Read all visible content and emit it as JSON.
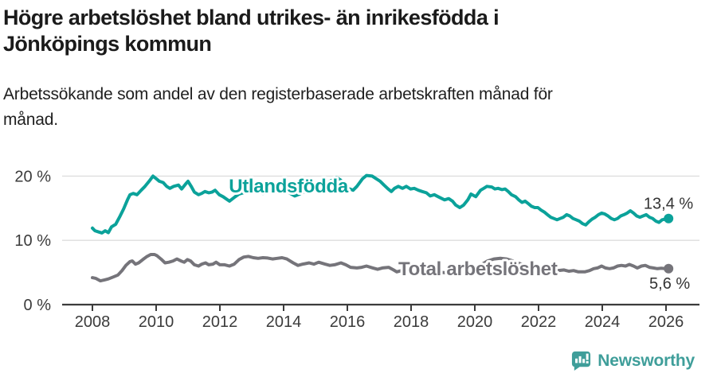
{
  "title": {
    "full": "Högre arbetslöshet bland utrikes- än inrikesfödda i Jönköpings kommun",
    "line1": "Högre arbetslöshet bland utrikes- än inrikesfödda i",
    "line2": "Jönköpings kommun"
  },
  "subtitle": {
    "full": "Arbetssökande som andel av den registerbaserade arbetskraften månad för månad.",
    "line1": "Arbetssökande som andel av den registerbaserade arbetskraften månad för",
    "line2": "månad."
  },
  "branding": {
    "logo_text": "Newsworthy",
    "logo_icon": "bar-chart-speech-bubble-icon",
    "logo_color": "#3f9e9a"
  },
  "colors": {
    "foreign_born_line": "#0ba29a",
    "total_line": "#75747a",
    "grid": "#dedede",
    "axis": "#3b3b3b",
    "tick_label": "#3b3b3b",
    "value_label": "#333333",
    "halo": "#ffffff"
  },
  "chart_data": {
    "type": "line",
    "title": "Högre arbetslöshet bland utrikes- än inrikesfödda i Jönköpings kommun",
    "subtitle": "Arbetssökande som andel av den registerbaserade arbetskraften månad för månad.",
    "unit": "%",
    "grid": "horizontal",
    "x_axis": {
      "ticks": [
        2008,
        2010,
        2012,
        2014,
        2016,
        2018,
        2020,
        2022,
        2024,
        2026
      ],
      "range": [
        2007.05,
        2027.05
      ]
    },
    "y_axis": {
      "ticks": [
        {
          "value": 0,
          "label": "0 %"
        },
        {
          "value": 10,
          "label": "10 %"
        },
        {
          "value": 20,
          "label": "20 %"
        }
      ],
      "range": [
        0,
        24
      ]
    },
    "series": [
      {
        "name": "Utlandsfödda",
        "slug": "utlandsfodda",
        "color": "#0ba29a",
        "end_value": 13.4,
        "end_label": "13,4 %",
        "end_label_offset": {
          "dx": 31,
          "dy": -12
        },
        "inline_label": {
          "text": "Utlandsfödda",
          "x": 2012.28,
          "y": 17.45
        },
        "points": [
          [
            2008.0,
            11.9
          ],
          [
            2008.08,
            11.5
          ],
          [
            2008.2,
            11.3
          ],
          [
            2008.3,
            11.15
          ],
          [
            2008.4,
            11.5
          ],
          [
            2008.5,
            11.2
          ],
          [
            2008.6,
            12.1
          ],
          [
            2008.73,
            12.5
          ],
          [
            2008.85,
            13.6
          ],
          [
            2008.98,
            14.9
          ],
          [
            2009.1,
            16.3
          ],
          [
            2009.18,
            17.1
          ],
          [
            2009.28,
            17.3
          ],
          [
            2009.4,
            17.1
          ],
          [
            2009.53,
            17.8
          ],
          [
            2009.65,
            18.4
          ],
          [
            2009.78,
            19.2
          ],
          [
            2009.9,
            20.0
          ],
          [
            2010.0,
            19.6
          ],
          [
            2010.1,
            19.2
          ],
          [
            2010.22,
            19.0
          ],
          [
            2010.33,
            18.4
          ],
          [
            2010.43,
            18.1
          ],
          [
            2010.55,
            18.4
          ],
          [
            2010.7,
            18.6
          ],
          [
            2010.8,
            18.0
          ],
          [
            2010.93,
            18.8
          ],
          [
            2011.0,
            19.2
          ],
          [
            2011.1,
            18.4
          ],
          [
            2011.2,
            17.5
          ],
          [
            2011.33,
            17.1
          ],
          [
            2011.43,
            17.3
          ],
          [
            2011.53,
            17.6
          ],
          [
            2011.65,
            17.4
          ],
          [
            2011.75,
            17.5
          ],
          [
            2011.85,
            17.8
          ],
          [
            2011.98,
            17.1
          ],
          [
            2012.1,
            16.8
          ],
          [
            2012.3,
            16.1
          ],
          [
            2012.48,
            16.8
          ],
          [
            2012.6,
            17.2
          ],
          [
            2012.8,
            17.5
          ],
          [
            2013.0,
            17.8
          ],
          [
            2013.2,
            17.6
          ],
          [
            2013.35,
            17.3
          ],
          [
            2013.5,
            17.6
          ],
          [
            2013.7,
            17.9
          ],
          [
            2013.9,
            18.1
          ],
          [
            2014.1,
            17.6
          ],
          [
            2014.35,
            16.9
          ],
          [
            2014.5,
            17.2
          ],
          [
            2014.7,
            17.7
          ],
          [
            2014.9,
            18.2
          ],
          [
            2015.1,
            18.5
          ],
          [
            2015.3,
            18.8
          ],
          [
            2015.5,
            19.3
          ],
          [
            2015.65,
            19.8
          ],
          [
            2015.78,
            19.4
          ],
          [
            2015.9,
            18.8
          ],
          [
            2016.03,
            18.1
          ],
          [
            2016.18,
            17.8
          ],
          [
            2016.3,
            18.4
          ],
          [
            2016.48,
            19.6
          ],
          [
            2016.6,
            20.1
          ],
          [
            2016.78,
            20.0
          ],
          [
            2016.9,
            19.6
          ],
          [
            2017.03,
            19.2
          ],
          [
            2017.15,
            18.6
          ],
          [
            2017.28,
            18.0
          ],
          [
            2017.38,
            17.6
          ],
          [
            2017.48,
            18.1
          ],
          [
            2017.6,
            18.4
          ],
          [
            2017.73,
            18.1
          ],
          [
            2017.85,
            18.4
          ],
          [
            2017.98,
            18.0
          ],
          [
            2018.1,
            18.1
          ],
          [
            2018.23,
            17.8
          ],
          [
            2018.35,
            17.6
          ],
          [
            2018.48,
            17.4
          ],
          [
            2018.6,
            16.9
          ],
          [
            2018.73,
            17.1
          ],
          [
            2018.85,
            16.8
          ],
          [
            2019.05,
            16.3
          ],
          [
            2019.18,
            16.5
          ],
          [
            2019.3,
            16.1
          ],
          [
            2019.4,
            15.5
          ],
          [
            2019.53,
            15.1
          ],
          [
            2019.65,
            15.5
          ],
          [
            2019.78,
            16.3
          ],
          [
            2019.88,
            17.2
          ],
          [
            2020.03,
            16.8
          ],
          [
            2020.18,
            17.8
          ],
          [
            2020.28,
            18.1
          ],
          [
            2020.38,
            18.4
          ],
          [
            2020.53,
            18.3
          ],
          [
            2020.63,
            18.0
          ],
          [
            2020.73,
            18.1
          ],
          [
            2020.85,
            17.9
          ],
          [
            2020.95,
            18.0
          ],
          [
            2021.05,
            17.6
          ],
          [
            2021.15,
            17.1
          ],
          [
            2021.28,
            16.8
          ],
          [
            2021.38,
            16.3
          ],
          [
            2021.48,
            15.9
          ],
          [
            2021.58,
            16.1
          ],
          [
            2021.68,
            15.7
          ],
          [
            2021.78,
            15.3
          ],
          [
            2021.88,
            15.1
          ],
          [
            2021.98,
            15.1
          ],
          [
            2022.08,
            14.7
          ],
          [
            2022.18,
            14.4
          ],
          [
            2022.28,
            14.0
          ],
          [
            2022.38,
            13.6
          ],
          [
            2022.48,
            13.4
          ],
          [
            2022.58,
            13.2
          ],
          [
            2022.68,
            13.4
          ],
          [
            2022.78,
            13.6
          ],
          [
            2022.88,
            14.0
          ],
          [
            2022.98,
            13.8
          ],
          [
            2023.08,
            13.4
          ],
          [
            2023.18,
            13.2
          ],
          [
            2023.28,
            13.0
          ],
          [
            2023.38,
            12.6
          ],
          [
            2023.48,
            12.4
          ],
          [
            2023.58,
            12.9
          ],
          [
            2023.68,
            13.3
          ],
          [
            2023.78,
            13.6
          ],
          [
            2023.88,
            14.0
          ],
          [
            2023.98,
            14.25
          ],
          [
            2024.08,
            14.1
          ],
          [
            2024.18,
            13.8
          ],
          [
            2024.28,
            13.4
          ],
          [
            2024.38,
            13.2
          ],
          [
            2024.48,
            13.4
          ],
          [
            2024.58,
            13.8
          ],
          [
            2024.68,
            14.0
          ],
          [
            2024.78,
            14.25
          ],
          [
            2024.88,
            14.6
          ],
          [
            2024.98,
            14.25
          ],
          [
            2025.08,
            13.8
          ],
          [
            2025.18,
            13.6
          ],
          [
            2025.28,
            13.8
          ],
          [
            2025.38,
            14.0
          ],
          [
            2025.48,
            13.6
          ],
          [
            2025.58,
            13.4
          ],
          [
            2025.68,
            13.0
          ],
          [
            2025.78,
            12.8
          ],
          [
            2025.88,
            13.2
          ],
          [
            2025.98,
            13.3
          ],
          [
            2026.08,
            13.4
          ]
        ]
      },
      {
        "name": "Total arbetslöshet",
        "slug": "total-arbetsloshet",
        "color": "#75747a",
        "end_value": 5.6,
        "end_label": "5,6 %",
        "end_label_offset": {
          "dx": 27,
          "dy": 25
        },
        "inline_label": {
          "text": "Total arbetslöshet",
          "x": 2017.6,
          "y": 4.55
        },
        "points": [
          [
            2008.0,
            4.2
          ],
          [
            2008.1,
            4.1
          ],
          [
            2008.25,
            3.7
          ],
          [
            2008.38,
            3.85
          ],
          [
            2008.5,
            4.0
          ],
          [
            2008.65,
            4.3
          ],
          [
            2008.8,
            4.6
          ],
          [
            2008.93,
            5.3
          ],
          [
            2009.05,
            6.1
          ],
          [
            2009.18,
            6.7
          ],
          [
            2009.25,
            6.8
          ],
          [
            2009.35,
            6.3
          ],
          [
            2009.45,
            6.5
          ],
          [
            2009.58,
            7.0
          ],
          [
            2009.7,
            7.45
          ],
          [
            2009.83,
            7.8
          ],
          [
            2009.95,
            7.8
          ],
          [
            2010.03,
            7.6
          ],
          [
            2010.15,
            7.1
          ],
          [
            2010.28,
            6.5
          ],
          [
            2010.4,
            6.6
          ],
          [
            2010.53,
            6.8
          ],
          [
            2010.65,
            7.1
          ],
          [
            2010.78,
            6.8
          ],
          [
            2010.88,
            6.6
          ],
          [
            2010.98,
            7.0
          ],
          [
            2011.08,
            6.8
          ],
          [
            2011.2,
            6.2
          ],
          [
            2011.33,
            6.0
          ],
          [
            2011.43,
            6.3
          ],
          [
            2011.55,
            6.5
          ],
          [
            2011.65,
            6.2
          ],
          [
            2011.78,
            6.3
          ],
          [
            2011.88,
            6.6
          ],
          [
            2012.0,
            6.2
          ],
          [
            2012.15,
            6.2
          ],
          [
            2012.3,
            6.0
          ],
          [
            2012.45,
            6.3
          ],
          [
            2012.6,
            7.0
          ],
          [
            2012.75,
            7.4
          ],
          [
            2012.9,
            7.5
          ],
          [
            2013.05,
            7.3
          ],
          [
            2013.2,
            7.2
          ],
          [
            2013.35,
            7.3
          ],
          [
            2013.5,
            7.25
          ],
          [
            2013.65,
            7.1
          ],
          [
            2013.8,
            7.2
          ],
          [
            2013.95,
            7.3
          ],
          [
            2014.1,
            7.1
          ],
          [
            2014.3,
            6.5
          ],
          [
            2014.45,
            6.1
          ],
          [
            2014.6,
            6.3
          ],
          [
            2014.8,
            6.5
          ],
          [
            2014.95,
            6.3
          ],
          [
            2015.1,
            6.6
          ],
          [
            2015.3,
            6.3
          ],
          [
            2015.45,
            6.1
          ],
          [
            2015.6,
            6.2
          ],
          [
            2015.8,
            6.5
          ],
          [
            2015.95,
            6.2
          ],
          [
            2016.1,
            5.8
          ],
          [
            2016.3,
            5.7
          ],
          [
            2016.45,
            5.8
          ],
          [
            2016.6,
            6.0
          ],
          [
            2016.8,
            5.7
          ],
          [
            2016.95,
            5.5
          ],
          [
            2017.1,
            5.7
          ],
          [
            2017.3,
            5.8
          ],
          [
            2017.45,
            5.4
          ],
          [
            2017.55,
            5.1
          ],
          [
            2017.7,
            5.3
          ],
          [
            2017.85,
            5.4
          ],
          [
            2018.0,
            5.5
          ],
          [
            2018.2,
            5.3
          ],
          [
            2018.4,
            5.1
          ],
          [
            2018.6,
            5.0
          ],
          [
            2018.8,
            5.1
          ],
          [
            2019.0,
            5.0
          ],
          [
            2019.2,
            4.9
          ],
          [
            2019.4,
            5.0
          ],
          [
            2019.6,
            5.1
          ],
          [
            2019.8,
            5.2
          ],
          [
            2020.0,
            5.4
          ],
          [
            2020.2,
            6.2
          ],
          [
            2020.4,
            6.8
          ],
          [
            2020.6,
            7.1
          ],
          [
            2020.8,
            7.2
          ],
          [
            2021.0,
            7.1
          ],
          [
            2021.2,
            6.8
          ],
          [
            2021.4,
            6.4
          ],
          [
            2021.6,
            6.1
          ],
          [
            2021.8,
            5.9
          ],
          [
            2022.0,
            5.7
          ],
          [
            2022.2,
            5.5
          ],
          [
            2022.4,
            5.4
          ],
          [
            2022.6,
            5.3
          ],
          [
            2022.8,
            5.4
          ],
          [
            2022.95,
            5.2
          ],
          [
            2023.1,
            5.3
          ],
          [
            2023.25,
            5.1
          ],
          [
            2023.45,
            5.1
          ],
          [
            2023.6,
            5.3
          ],
          [
            2023.73,
            5.6
          ],
          [
            2023.85,
            5.7
          ],
          [
            2023.98,
            6.0
          ],
          [
            2024.1,
            5.7
          ],
          [
            2024.23,
            5.6
          ],
          [
            2024.35,
            5.7
          ],
          [
            2024.48,
            6.0
          ],
          [
            2024.6,
            6.1
          ],
          [
            2024.73,
            6.0
          ],
          [
            2024.85,
            6.25
          ],
          [
            2024.98,
            6.0
          ],
          [
            2025.1,
            5.7
          ],
          [
            2025.23,
            6.0
          ],
          [
            2025.35,
            6.1
          ],
          [
            2025.48,
            5.8
          ],
          [
            2025.6,
            5.7
          ],
          [
            2025.73,
            5.6
          ],
          [
            2025.85,
            5.65
          ],
          [
            2025.98,
            5.6
          ],
          [
            2026.08,
            5.6
          ]
        ]
      }
    ]
  }
}
